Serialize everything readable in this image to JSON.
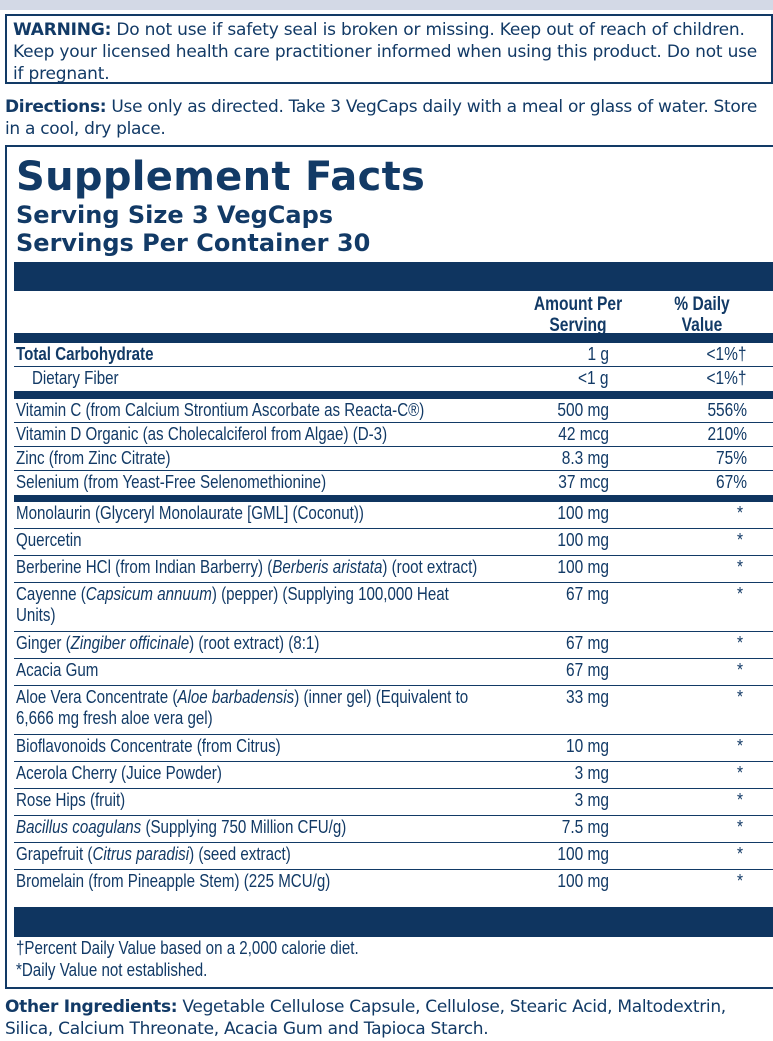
{
  "warning": {
    "label": "WARNING:",
    "text": " Do not use if safety seal is broken or missing. Keep out of reach of children. Keep your licensed health care practitioner informed when using this product. Do not use if pregnant."
  },
  "directions": {
    "label": "Directions:",
    "text": " Use only as directed. Take 3 VegCaps daily with a meal or glass of water. Store in a cool, dry place."
  },
  "facts": {
    "title": "Supplement Facts",
    "serving_size": "Serving Size 3 VegCaps",
    "servings_per_container": "Servings Per Container 30",
    "col_amount": "Amount Per Serving",
    "col_dv": "% Daily Value",
    "rows": [
      {
        "pre": "Total Carbohydrate",
        "amount": "1 g",
        "dv": "<1%†",
        "style": "bold"
      },
      {
        "pre": "Dietary Fiber",
        "amount": "<1 g",
        "dv": "<1%†",
        "style": "sub"
      },
      {
        "pre": "Vitamin C (from Calcium Strontium Ascorbate as Reacta-C®)",
        "amount": "500 mg",
        "dv": "556%"
      },
      {
        "pre": "Vitamin D Organic (as Cholecalciferol from Algae) (D-3)",
        "amount": "42 mcg",
        "dv": "210%"
      },
      {
        "pre": "Zinc (from Zinc Citrate)",
        "amount": "8.3 mg",
        "dv": "75%"
      },
      {
        "pre": "Selenium (from Yeast-Free Selenomethionine)",
        "amount": "37 mcg",
        "dv": "67%"
      },
      {
        "pre": "Monolaurin (Glyceryl Monolaurate [GML] (Coconut))",
        "amount": "100 mg",
        "dv": "*"
      },
      {
        "pre": "Quercetin",
        "amount": "100 mg",
        "dv": "*"
      },
      {
        "pre": "Berberine HCl (from Indian Barberry) (",
        "italic": "Berberis aristata",
        "post": ") (root extract)",
        "amount": "100 mg",
        "dv": "*"
      },
      {
        "pre": "Cayenne (",
        "italic": "Capsicum annuum",
        "post": ") (pepper) (Supplying 100,000 Heat Units)",
        "amount": "67 mg",
        "dv": "*"
      },
      {
        "pre": "Ginger (",
        "italic": "Zingiber officinale",
        "post": ") (root extract) (8:1)",
        "amount": "67 mg",
        "dv": "*"
      },
      {
        "pre": "Acacia Gum",
        "amount": "67 mg",
        "dv": "*"
      },
      {
        "pre": "Aloe Vera Concentrate (",
        "italic": "Aloe barbadensis",
        "post": ") (inner gel) (Equivalent to 6,666 mg fresh aloe vera gel)",
        "amount": "33 mg",
        "dv": "*"
      },
      {
        "pre": "Bioflavonoids Concentrate (from Citrus)",
        "amount": "10 mg",
        "dv": "*"
      },
      {
        "pre": "Acerola Cherry (Juice Powder)",
        "amount": "3 mg",
        "dv": "*"
      },
      {
        "pre": "Rose Hips (fruit)",
        "amount": "3 mg",
        "dv": "*"
      },
      {
        "pre": "",
        "italic": "Bacillus coagulans",
        "post": " (Supplying 750 Million CFU/g)",
        "amount": "7.5 mg",
        "dv": "*"
      },
      {
        "pre": "Grapefruit (",
        "italic": "Citrus paradisi",
        "post": ") (seed extract)",
        "amount": "100 mg",
        "dv": "*"
      },
      {
        "pre": "Bromelain (from Pineapple Stem) (225 MCU/g)",
        "amount": "100 mg",
        "dv": "*"
      }
    ],
    "footnote_dagger": "†Percent Daily Value based on a 2,000 calorie diet.",
    "footnote_star": "*Daily Value not established."
  },
  "other_ingredients": {
    "label": "Other Ingredients:",
    "text": " Vegetable Cellulose Capsule, Cellulose, Stearic Acid, Maltodextrin, Silica, Calcium Threonate, Acacia Gum and Tapioca Starch."
  },
  "colors": {
    "navy": "#0f3560",
    "text": "#123a66"
  }
}
